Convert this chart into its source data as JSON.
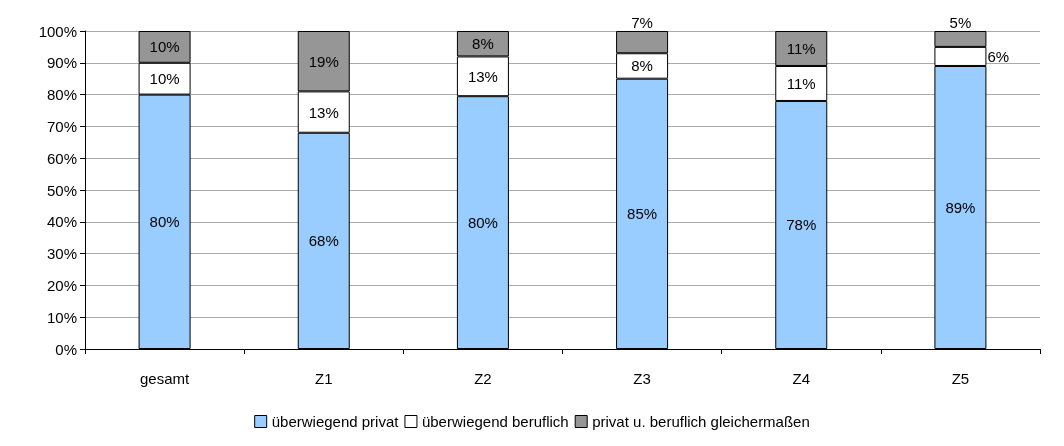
{
  "chart_data": {
    "type": "bar",
    "stacked": true,
    "categories": [
      "gesamt",
      "Z1",
      "Z2",
      "Z3",
      "Z4",
      "Z5"
    ],
    "series": [
      {
        "name": "überwiegend privat",
        "color": "#99ccff",
        "values": [
          80,
          68,
          79.5,
          85,
          78,
          89
        ],
        "value_labels": [
          "80%",
          "68%",
          "80%",
          "85%",
          "78%",
          "89%"
        ]
      },
      {
        "name": "überwiegend beruflich",
        "color": "#ffffff",
        "values": [
          10,
          13,
          12.5,
          8,
          11,
          6
        ],
        "value_labels": [
          "10%",
          "13%",
          "13%",
          "8%",
          "11%",
          "6%"
        ]
      },
      {
        "name": "privat u. beruflich gleichermaßen",
        "color": "#969696",
        "values": [
          10,
          19,
          8,
          7,
          11,
          5
        ],
        "value_labels": [
          "10%",
          "19%",
          "8%",
          "7%",
          "11%",
          "5%"
        ]
      }
    ],
    "ylim": [
      0,
      100
    ],
    "yticks": [
      {
        "value": 0,
        "label": "0%"
      },
      {
        "value": 10,
        "label": "10%"
      },
      {
        "value": 20,
        "label": "20%"
      },
      {
        "value": 30,
        "label": "30%"
      },
      {
        "value": 40,
        "label": "40%"
      },
      {
        "value": 50,
        "label": "50%"
      },
      {
        "value": 60,
        "label": "60%"
      },
      {
        "value": 70,
        "label": "70%"
      },
      {
        "value": 80,
        "label": "80%"
      },
      {
        "value": 90,
        "label": "90%"
      },
      {
        "value": 100,
        "label": "100%"
      }
    ],
    "grid": "y",
    "legend": "bottom"
  }
}
